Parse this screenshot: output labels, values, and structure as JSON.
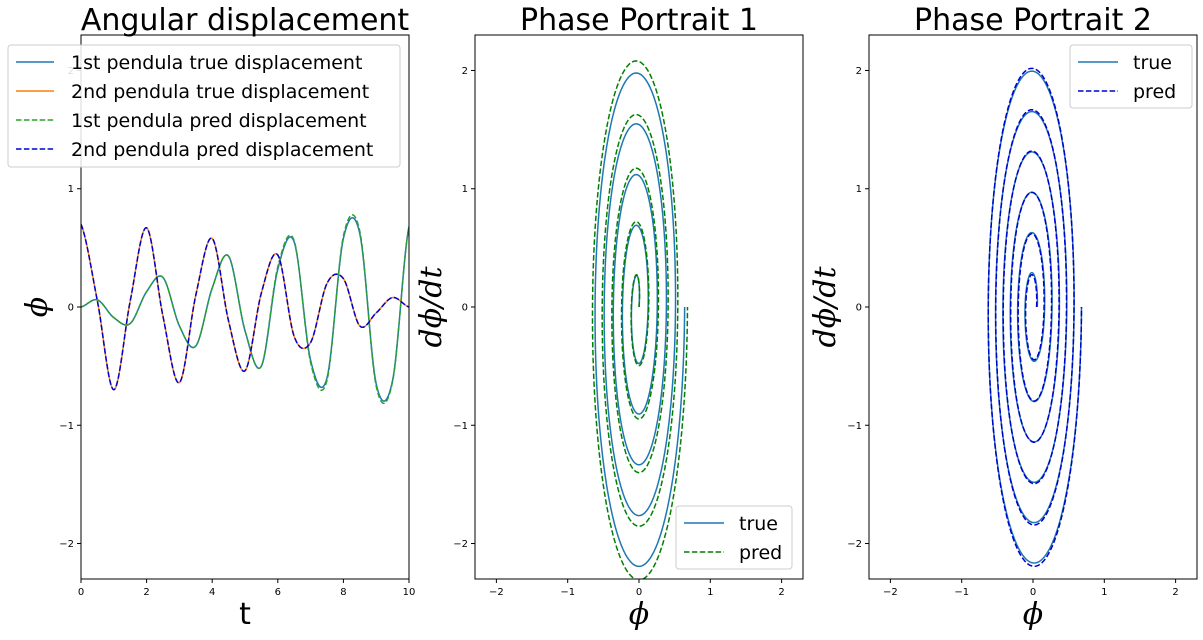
{
  "chart_data": [
    {
      "type": "line",
      "title": "Angular displacement",
      "xlabel": "t",
      "ylabel": "ϕ",
      "xlim": [
        0,
        10
      ],
      "ylim": [
        -2.3,
        2.3
      ],
      "xticks": [
        0,
        2,
        4,
        6,
        8,
        10
      ],
      "yticks": [
        -2,
        -1,
        0,
        1,
        2
      ],
      "xtick_labels": [
        "0",
        "2",
        "4",
        "6",
        "8",
        "10"
      ],
      "ytick_labels": [
        "−2",
        "−1",
        "0",
        "1",
        "2"
      ],
      "legend_position": "upper-left",
      "grid": false,
      "series": [
        {
          "name": "1st pendula true displacement",
          "color": "#1f77b4",
          "dash": "solid",
          "x": [
            0,
            0.5,
            1,
            1.5,
            2,
            2.5,
            3,
            3.5,
            4,
            4.5,
            5,
            5.5,
            6,
            6.5,
            7,
            7.5,
            8,
            8.5,
            9,
            9.5,
            10
          ],
          "y": [
            0,
            0.06,
            -0.09,
            -0.14,
            0.13,
            0.25,
            -0.16,
            -0.33,
            0.16,
            0.43,
            -0.2,
            -0.5,
            0.32,
            0.55,
            -0.45,
            -0.6,
            0.58,
            0.62,
            -0.65,
            -0.62,
            0.68
          ]
        },
        {
          "name": "2nd pendula true displacement",
          "color": "#ff7f0e",
          "dash": "solid",
          "x": [
            0,
            0.5,
            1,
            1.5,
            2,
            2.5,
            3,
            3.5,
            4,
            4.5,
            5,
            5.5,
            6,
            6.5,
            7,
            7.5,
            8,
            8.5,
            9,
            9.5,
            10
          ],
          "y": [
            0.7,
            0.05,
            -0.7,
            0.05,
            0.67,
            -0.08,
            -0.64,
            0.1,
            0.58,
            -0.12,
            -0.54,
            0.12,
            0.44,
            -0.25,
            -0.3,
            0.2,
            0.24,
            -0.16,
            -0.05,
            0.08,
            0.0
          ]
        },
        {
          "name": "1st pendula pred displacement",
          "color": "#2ca02c",
          "dash": "dashed",
          "x": [
            0,
            0.5,
            1,
            1.5,
            2,
            2.5,
            3,
            3.5,
            4,
            4.5,
            5,
            5.5,
            6,
            6.5,
            7,
            7.5,
            8,
            8.5,
            9,
            9.5,
            10
          ],
          "y": [
            0,
            0.06,
            -0.09,
            -0.14,
            0.13,
            0.25,
            -0.16,
            -0.33,
            0.16,
            0.43,
            -0.2,
            -0.5,
            0.34,
            0.56,
            -0.47,
            -0.62,
            0.6,
            0.64,
            -0.67,
            -0.63,
            0.68
          ]
        },
        {
          "name": "2nd pendula pred displacement",
          "color": "#0000cd",
          "dash": "dashed",
          "x": [
            0,
            0.5,
            1,
            1.5,
            2,
            2.5,
            3,
            3.5,
            4,
            4.5,
            5,
            5.5,
            6,
            6.5,
            7,
            7.5,
            8,
            8.5,
            9,
            9.5,
            10
          ],
          "y": [
            0.7,
            0.05,
            -0.7,
            0.05,
            0.67,
            -0.08,
            -0.64,
            0.1,
            0.58,
            -0.12,
            -0.54,
            0.12,
            0.44,
            -0.25,
            -0.3,
            0.2,
            0.24,
            -0.16,
            -0.05,
            0.08,
            0.0
          ]
        }
      ]
    },
    {
      "type": "line",
      "title": "Phase Portrait 1",
      "xlabel": "ϕ",
      "ylabel": "dϕ/dt",
      "xlim": [
        -2.3,
        2.3
      ],
      "ylim": [
        -2.3,
        2.3
      ],
      "xticks": [
        -2,
        -1,
        0,
        1,
        2
      ],
      "yticks": [
        -2,
        -1,
        0,
        1,
        2
      ],
      "xtick_labels": [
        "−2",
        "−1",
        "0",
        "1",
        "2"
      ],
      "ytick_labels": [
        "−2",
        "−1",
        "0",
        "1",
        "2"
      ],
      "legend_position": "lower-right",
      "grid": false,
      "series": [
        {
          "name": "true",
          "color": "#1f77b4",
          "dash": "solid",
          "spiral": {
            "start_amplitude_x": 0.02,
            "start_amplitude_y": 0.15,
            "end_amplitude_x": 0.66,
            "end_amplitude_y": 2.3,
            "turns": 5,
            "center_x": -0.02
          }
        },
        {
          "name": "pred",
          "color": "#008000",
          "dash": "dashed",
          "spiral": {
            "start_amplitude_x": 0.02,
            "start_amplitude_y": 0.15,
            "end_amplitude_x": 0.7,
            "end_amplitude_y": 2.42,
            "turns": 5,
            "center_x": -0.02
          }
        }
      ]
    },
    {
      "type": "line",
      "title": "Phase Portrait 2",
      "xlabel": "ϕ",
      "ylabel": "dϕ/dt",
      "xlim": [
        -2.3,
        2.3
      ],
      "ylim": [
        -2.3,
        2.3
      ],
      "xticks": [
        -2,
        -1,
        0,
        1,
        2
      ],
      "yticks": [
        -2,
        -1,
        0,
        1,
        2
      ],
      "xtick_labels": [
        "−2",
        "−1",
        "0",
        "1",
        "2"
      ],
      "ytick_labels": [
        "−2",
        "−1",
        "0",
        "1",
        "2"
      ],
      "legend_position": "upper-right",
      "grid": false,
      "series": [
        {
          "name": "true",
          "color": "#1f77b4",
          "dash": "solid",
          "spiral": {
            "start_amplitude_x": 0.06,
            "start_amplitude_y": 0.2,
            "end_amplitude_x": 0.68,
            "end_amplitude_y": 2.25,
            "turns": 6,
            "center_x": 0.0
          }
        },
        {
          "name": "pred",
          "color": "#0000cd",
          "dash": "dashed",
          "spiral": {
            "start_amplitude_x": 0.05,
            "start_amplitude_y": 0.18,
            "end_amplitude_x": 0.68,
            "end_amplitude_y": 2.28,
            "turns": 6,
            "center_x": 0.0
          }
        }
      ]
    }
  ]
}
